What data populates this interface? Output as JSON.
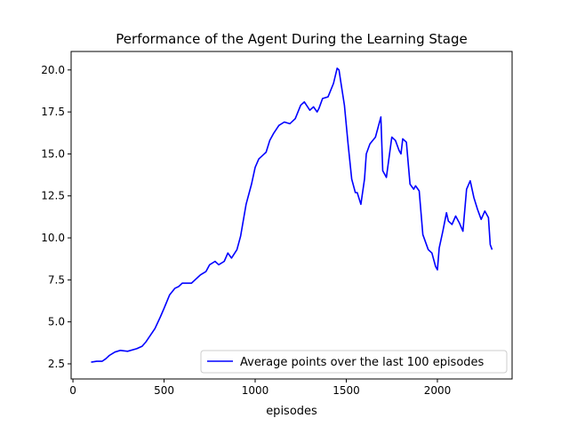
{
  "chart_data": {
    "type": "line",
    "title": "Performance of the Agent During the Learning Stage",
    "xlabel": "episodes",
    "ylabel": "",
    "xlim": [
      -10,
      2410
    ],
    "ylim": [
      1.6,
      21.1
    ],
    "xticks": [
      0,
      500,
      1000,
      1500,
      2000
    ],
    "xtick_labels": [
      "0",
      "500",
      "1000",
      "1500",
      "2000"
    ],
    "yticks": [
      2.5,
      5.0,
      7.5,
      10.0,
      12.5,
      15.0,
      17.5,
      20.0
    ],
    "ytick_labels": [
      "2.5",
      "5.0",
      "7.5",
      "10.0",
      "12.5",
      "15.0",
      "17.5",
      "20.0"
    ],
    "grid": false,
    "legend_position": "lower-right",
    "series": [
      {
        "name": "Average points over the last 100 episodes",
        "color": "#0000ff",
        "x": [
          100,
          130,
          160,
          180,
          200,
          230,
          260,
          300,
          350,
          380,
          400,
          450,
          480,
          500,
          530,
          560,
          580,
          600,
          650,
          700,
          730,
          750,
          780,
          800,
          830,
          850,
          870,
          900,
          920,
          950,
          980,
          1000,
          1020,
          1040,
          1060,
          1080,
          1100,
          1130,
          1160,
          1190,
          1220,
          1250,
          1270,
          1300,
          1320,
          1340,
          1350,
          1370,
          1400,
          1430,
          1450,
          1460,
          1470,
          1490,
          1510,
          1530,
          1550,
          1560,
          1580,
          1600,
          1610,
          1630,
          1660,
          1690,
          1700,
          1720,
          1750,
          1770,
          1790,
          1800,
          1810,
          1830,
          1850,
          1870,
          1880,
          1900,
          1920,
          1950,
          1970,
          1990,
          2000,
          2010,
          2030,
          2050,
          2060,
          2080,
          2100,
          2120,
          2140,
          2160,
          2180,
          2200,
          2220,
          2240,
          2260,
          2280,
          2290,
          2300
        ],
        "y": [
          2.6,
          2.65,
          2.65,
          2.8,
          3.0,
          3.2,
          3.3,
          3.25,
          3.4,
          3.55,
          3.8,
          4.6,
          5.3,
          5.8,
          6.6,
          7.0,
          7.1,
          7.3,
          7.3,
          7.8,
          8.0,
          8.4,
          8.6,
          8.4,
          8.6,
          9.1,
          8.8,
          9.3,
          10.1,
          12.0,
          13.2,
          14.2,
          14.7,
          14.9,
          15.1,
          15.8,
          16.2,
          16.7,
          16.9,
          16.8,
          17.1,
          17.9,
          18.1,
          17.6,
          17.8,
          17.5,
          17.7,
          18.3,
          18.4,
          19.2,
          20.1,
          20.0,
          19.3,
          17.9,
          15.6,
          13.5,
          12.7,
          12.7,
          12.0,
          13.5,
          15.0,
          15.6,
          16.0,
          17.2,
          14.0,
          13.6,
          16.0,
          15.8,
          15.2,
          15.0,
          15.9,
          15.7,
          13.2,
          12.9,
          13.1,
          12.8,
          10.2,
          9.3,
          9.1,
          8.3,
          8.1,
          9.4,
          10.4,
          11.5,
          11.0,
          10.8,
          11.3,
          10.9,
          10.4,
          12.9,
          13.4,
          12.4,
          11.7,
          11.1,
          11.6,
          11.2,
          9.6,
          9.3
        ]
      }
    ]
  }
}
